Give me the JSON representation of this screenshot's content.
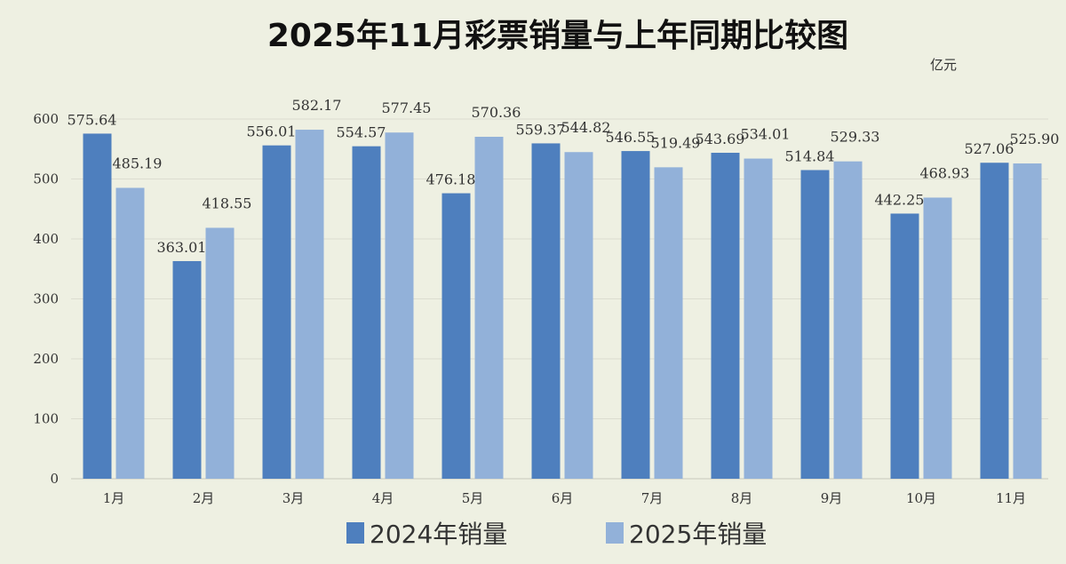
{
  "chart_data": {
    "type": "bar",
    "title": "2025年11月彩票销量与上年同期比较图",
    "unit": "亿元",
    "categories": [
      "1月",
      "2月",
      "3月",
      "4月",
      "5月",
      "6月",
      "7月",
      "8月",
      "9月",
      "10月",
      "11月"
    ],
    "series": [
      {
        "name": "2024年销量",
        "color": "#4e7fbe",
        "values": [
          575.64,
          363.01,
          556.01,
          554.57,
          476.18,
          559.37,
          546.55,
          543.69,
          514.84,
          442.25,
          527.06
        ],
        "labels": [
          "575.64",
          "363.01",
          "556.01",
          "554.57",
          "476.18",
          "559.37",
          "546.55",
          "543.69",
          "514.84",
          "442.25",
          "527.06"
        ]
      },
      {
        "name": "2025年销量",
        "color": "#92b1d9",
        "values": [
          485.19,
          418.55,
          582.17,
          577.45,
          570.36,
          544.82,
          519.49,
          534.01,
          529.33,
          468.93,
          525.9
        ],
        "labels": [
          "485.19",
          "418.55",
          "582.17",
          "577.45",
          "570.36",
          "544.82",
          "519.49",
          "534.01",
          "529.33",
          "468.93",
          "525.90"
        ]
      }
    ],
    "ylim": [
      0,
      600
    ],
    "yticks": [
      0,
      100,
      200,
      300,
      400,
      500,
      600
    ],
    "grid": true,
    "legend_position": "bottom",
    "background": "#eef0e2"
  }
}
